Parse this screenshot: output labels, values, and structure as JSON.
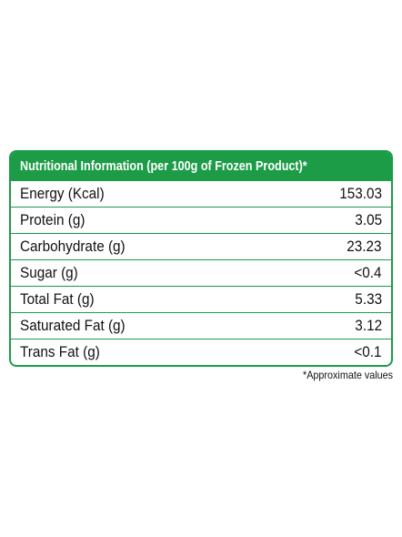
{
  "table": {
    "title": "Nutritional Information (per 100g of Frozen Product)*",
    "rows": [
      [
        "Energy (Kcal)",
        "153.03"
      ],
      [
        "Protein (g)",
        "3.05"
      ],
      [
        "Carbohydrate (g)",
        "23.23"
      ],
      [
        "Sugar (g)",
        "<0.4"
      ],
      [
        "Total Fat (g)",
        "5.33"
      ],
      [
        "Saturated Fat (g)",
        "3.12"
      ],
      [
        "Trans Fat (g)",
        "<0.1"
      ]
    ]
  },
  "footnote": "*Approximate values"
}
